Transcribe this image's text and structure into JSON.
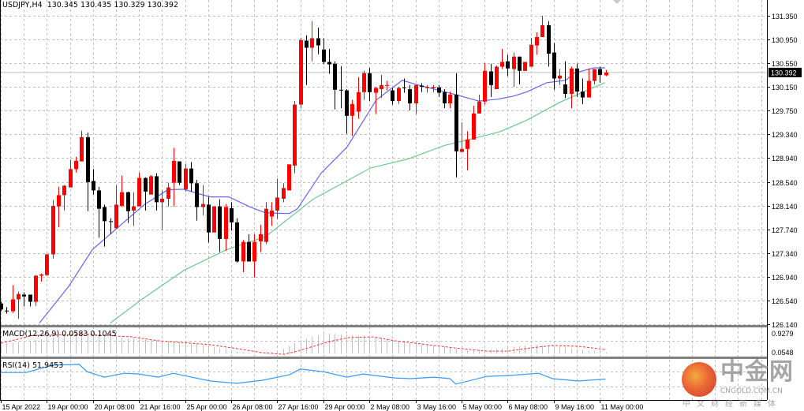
{
  "header": {
    "symbol": "USDJPY,H4",
    "open": "130.345",
    "high": "130.435",
    "low": "130.329",
    "close": "130.392"
  },
  "colors": {
    "bull": "#ff0000",
    "bear": "#000000",
    "ma_fast": "#6464ff",
    "ma_slow": "#6cc88c",
    "macd_hist": "#c0c0c0",
    "macd_signal": "#ff3030",
    "rsi": "#3399ff",
    "grid": "#c0c0c0"
  },
  "chart_data": {
    "type": "candlestick",
    "title": "USDJPY,H4",
    "ylim": [
      126.14,
      131.35
    ],
    "price_labels": [
      "131.350",
      "130.950",
      "130.550",
      "130.150",
      "129.750",
      "129.340",
      "128.940",
      "128.540",
      "128.140",
      "127.740",
      "127.340",
      "126.940",
      "126.540",
      "126.140"
    ],
    "current_price": "130.392",
    "time_labels": [
      {
        "i": 0,
        "t": "15 Apr 2022"
      },
      {
        "i": 8,
        "t": "19 Apr 00:00"
      },
      {
        "i": 16,
        "t": "20 Apr 08:00"
      },
      {
        "i": 24,
        "t": "21 Apr 16:00"
      },
      {
        "i": 32,
        "t": "25 Apr 00:00"
      },
      {
        "i": 40,
        "t": "26 Apr 08:00"
      },
      {
        "i": 48,
        "t": "27 Apr 16:00"
      },
      {
        "i": 56,
        "t": "29 Apr 00:00"
      },
      {
        "i": 64,
        "t": "2 May 08:00"
      },
      {
        "i": 72,
        "t": "3 May 16:00"
      },
      {
        "i": 80,
        "t": "5 May 00:00"
      },
      {
        "i": 88,
        "t": "6 May 08:00"
      },
      {
        "i": 96,
        "t": "9 May 16:00"
      },
      {
        "i": 104,
        "t": "11 May 00:00"
      }
    ],
    "ohlc": [
      [
        126.49,
        126.52,
        126.36,
        126.39
      ],
      [
        126.37,
        126.43,
        126.32,
        126.36
      ],
      [
        126.36,
        126.8,
        126.33,
        126.56
      ],
      [
        126.56,
        126.69,
        126.23,
        126.65
      ],
      [
        126.64,
        126.68,
        126.44,
        126.61
      ],
      [
        126.64,
        126.64,
        126.44,
        126.52
      ],
      [
        126.52,
        126.97,
        126.45,
        126.96
      ],
      [
        126.96,
        127.0,
        126.86,
        126.98
      ],
      [
        126.97,
        127.33,
        126.96,
        127.32
      ],
      [
        127.32,
        128.24,
        127.25,
        128.14
      ],
      [
        128.13,
        128.46,
        127.78,
        128.32
      ],
      [
        128.32,
        128.49,
        128.06,
        128.48
      ],
      [
        128.45,
        128.92,
        128.45,
        128.76
      ],
      [
        128.76,
        128.97,
        128.7,
        128.9
      ],
      [
        128.89,
        129.41,
        128.89,
        129.3
      ],
      [
        129.3,
        129.38,
        128.05,
        128.54
      ],
      [
        128.56,
        128.76,
        128.33,
        128.4
      ],
      [
        128.4,
        128.46,
        127.6,
        128.09
      ],
      [
        128.12,
        128.16,
        127.45,
        127.88
      ],
      [
        127.88,
        127.93,
        127.66,
        127.87
      ],
      [
        127.76,
        128.49,
        127.76,
        128.16
      ],
      [
        128.14,
        128.65,
        128.12,
        128.37
      ],
      [
        128.37,
        128.38,
        127.85,
        128.05
      ],
      [
        128.06,
        128.37,
        127.8,
        128.13
      ],
      [
        128.13,
        128.7,
        128.13,
        128.61
      ],
      [
        128.61,
        128.62,
        128.06,
        128.38
      ],
      [
        128.33,
        128.66,
        128.33,
        128.64
      ],
      [
        128.64,
        128.69,
        128.06,
        128.2
      ],
      [
        128.2,
        128.4,
        127.73,
        128.26
      ],
      [
        128.26,
        128.53,
        128.13,
        128.45
      ],
      [
        128.53,
        129.12,
        128.13,
        128.9
      ],
      [
        128.89,
        128.89,
        128.49,
        128.53
      ],
      [
        128.42,
        128.85,
        128.38,
        128.77
      ],
      [
        128.77,
        128.88,
        128.38,
        128.52
      ],
      [
        128.52,
        128.58,
        127.89,
        128.12
      ],
      [
        128.12,
        128.49,
        127.98,
        128.17
      ],
      [
        128.16,
        128.29,
        127.52,
        127.69
      ],
      [
        127.69,
        128.13,
        127.69,
        128.13
      ],
      [
        128.13,
        128.25,
        127.36,
        127.58
      ],
      [
        127.58,
        128.17,
        127.38,
        128.12
      ],
      [
        128.1,
        128.2,
        127.72,
        127.86
      ],
      [
        127.86,
        127.93,
        127.18,
        127.2
      ],
      [
        127.2,
        127.56,
        127.02,
        127.53
      ],
      [
        127.53,
        127.66,
        127.2,
        127.2
      ],
      [
        127.2,
        127.66,
        126.93,
        127.53
      ],
      [
        127.54,
        127.82,
        127.36,
        127.66
      ],
      [
        127.53,
        128.2,
        127.49,
        128.09
      ],
      [
        127.96,
        128.2,
        127.8,
        128.06
      ],
      [
        128.06,
        128.6,
        127.92,
        128.28
      ],
      [
        128.26,
        128.52,
        128.2,
        128.44
      ],
      [
        128.4,
        128.84,
        128.4,
        128.84
      ],
      [
        128.82,
        129.91,
        128.69,
        129.85
      ],
      [
        129.85,
        130.98,
        129.79,
        130.94
      ],
      [
        130.93,
        131.02,
        130.18,
        130.81
      ],
      [
        130.81,
        131.26,
        130.58,
        130.97
      ],
      [
        130.97,
        131.15,
        130.7,
        130.85
      ],
      [
        130.78,
        130.97,
        130.53,
        130.57
      ],
      [
        130.57,
        130.79,
        130.37,
        130.53
      ],
      [
        130.54,
        130.58,
        129.77,
        130.1
      ],
      [
        130.1,
        130.5,
        129.79,
        130.09
      ],
      [
        130.09,
        130.11,
        129.36,
        129.66
      ],
      [
        129.66,
        129.93,
        129.32,
        129.86
      ],
      [
        129.73,
        130.31,
        129.61,
        130.06
      ],
      [
        130.06,
        130.42,
        129.93,
        130.38
      ],
      [
        130.38,
        130.47,
        129.91,
        130.06
      ],
      [
        130.05,
        130.15,
        129.69,
        130.13
      ],
      [
        130.11,
        130.35,
        129.96,
        130.18
      ],
      [
        130.17,
        130.25,
        130.09,
        130.18
      ],
      [
        130.09,
        130.13,
        129.85,
        129.91
      ],
      [
        129.91,
        130.15,
        129.86,
        130.13
      ],
      [
        130.14,
        130.29,
        130.05,
        130.13
      ],
      [
        130.11,
        130.18,
        129.75,
        129.87
      ],
      [
        129.87,
        130.18,
        129.69,
        130.18
      ],
      [
        130.17,
        130.21,
        130.06,
        130.15
      ],
      [
        130.13,
        130.18,
        130.05,
        130.15
      ],
      [
        130.13,
        130.18,
        130.06,
        130.15
      ],
      [
        130.14,
        130.18,
        129.98,
        130.05
      ],
      [
        130.06,
        130.11,
        129.79,
        129.87
      ],
      [
        129.87,
        130.07,
        129.79,
        130.02
      ],
      [
        130.02,
        130.38,
        128.62,
        129.06
      ],
      [
        129.05,
        129.55,
        129.05,
        129.1
      ],
      [
        129.1,
        129.4,
        128.74,
        129.26
      ],
      [
        129.26,
        129.83,
        129.26,
        129.7
      ],
      [
        129.7,
        130.02,
        129.7,
        129.9
      ],
      [
        129.9,
        130.55,
        129.85,
        130.42
      ],
      [
        130.41,
        130.54,
        129.98,
        130.18
      ],
      [
        130.11,
        130.51,
        130.11,
        130.49
      ],
      [
        130.49,
        130.79,
        130.45,
        130.57
      ],
      [
        130.58,
        130.69,
        130.33,
        130.46
      ],
      [
        130.45,
        130.73,
        130.15,
        130.66
      ],
      [
        130.66,
        130.66,
        130.19,
        130.42
      ],
      [
        130.42,
        130.57,
        130.42,
        130.57
      ],
      [
        130.49,
        130.97,
        130.49,
        130.86
      ],
      [
        130.85,
        131.07,
        130.69,
        130.99
      ],
      [
        130.99,
        131.35,
        130.99,
        131.19
      ],
      [
        131.19,
        131.26,
        130.49,
        130.71
      ],
      [
        130.73,
        130.89,
        130.1,
        130.29
      ],
      [
        130.29,
        130.45,
        130.18,
        130.34
      ],
      [
        130.19,
        130.58,
        129.96,
        130.03
      ],
      [
        130.03,
        130.49,
        129.79,
        130.46
      ],
      [
        130.46,
        130.54,
        129.98,
        130.07
      ],
      [
        130.07,
        130.29,
        129.86,
        129.97
      ],
      [
        129.97,
        130.46,
        129.97,
        130.25
      ],
      [
        130.25,
        130.45,
        130.19,
        130.45
      ],
      [
        130.45,
        130.49,
        130.22,
        130.35
      ],
      [
        130.345,
        130.435,
        130.329,
        130.392
      ]
    ],
    "ma_fast": [
      [
        6.7,
        126.16
      ],
      [
        11.8,
        126.78
      ],
      [
        15.9,
        127.4
      ],
      [
        20.4,
        127.78
      ],
      [
        24.9,
        128.16
      ],
      [
        29.0,
        128.41
      ],
      [
        31.8,
        128.42
      ],
      [
        34.1,
        128.35
      ],
      [
        36.4,
        128.29
      ],
      [
        39.6,
        128.29
      ],
      [
        43.3,
        128.12
      ],
      [
        46.0,
        128.02
      ],
      [
        50.1,
        128.01
      ],
      [
        51.5,
        128.09
      ],
      [
        55.6,
        128.69
      ],
      [
        60.1,
        129.13
      ],
      [
        65.2,
        129.93
      ],
      [
        69.7,
        130.26
      ],
      [
        72.5,
        130.18
      ],
      [
        78.9,
        130.02
      ],
      [
        83.0,
        129.91
      ],
      [
        86.2,
        129.94
      ],
      [
        88.9,
        129.99
      ],
      [
        91.2,
        130.06
      ],
      [
        94.8,
        130.22
      ],
      [
        98.1,
        130.26
      ],
      [
        99.5,
        130.38
      ],
      [
        103.0,
        130.47
      ],
      [
        104.9,
        130.47
      ]
    ],
    "ma_slow": [
      [
        19.0,
        126.16
      ],
      [
        24.5,
        126.56
      ],
      [
        31.8,
        127.05
      ],
      [
        39.2,
        127.4
      ],
      [
        46.0,
        127.62
      ],
      [
        54.2,
        128.25
      ],
      [
        64.2,
        128.78
      ],
      [
        70.7,
        128.93
      ],
      [
        77.0,
        129.16
      ],
      [
        83.4,
        129.31
      ],
      [
        86.6,
        129.39
      ],
      [
        91.2,
        129.58
      ],
      [
        97.1,
        129.89
      ],
      [
        102.2,
        130.11
      ],
      [
        104.9,
        130.22
      ]
    ]
  },
  "macd": {
    "label": "MACD(12,26,9) 0.0583 0.1045",
    "axis_labels": [
      "0.9279",
      "0.0548"
    ],
    "histogram": [
      [
        0,
        0.45
      ],
      [
        6,
        0.6
      ],
      [
        14,
        0.95
      ],
      [
        16,
        0.85
      ],
      [
        22,
        0.7
      ],
      [
        30,
        0.55
      ],
      [
        36,
        0.35
      ],
      [
        41,
        0.1
      ],
      [
        44,
        0.02
      ],
      [
        48,
        0.1
      ],
      [
        52,
        0.6
      ],
      [
        56,
        0.9
      ],
      [
        60,
        0.85
      ],
      [
        66,
        0.7
      ],
      [
        72,
        0.45
      ],
      [
        78,
        0.3
      ],
      [
        80,
        0.15
      ],
      [
        86,
        0.2
      ],
      [
        92,
        0.4
      ],
      [
        96,
        0.35
      ],
      [
        100,
        0.2
      ],
      [
        105,
        0.06
      ]
    ],
    "signal": [
      [
        0,
        0.47
      ],
      [
        5.8,
        0.82
      ],
      [
        15,
        0.86
      ],
      [
        22.7,
        0.75
      ],
      [
        27.3,
        0.58
      ],
      [
        36.4,
        0.4
      ],
      [
        41,
        0.23
      ],
      [
        45.5,
        0.05
      ],
      [
        49.2,
        -0.02
      ],
      [
        51.5,
        0.12
      ],
      [
        57,
        0.54
      ],
      [
        60.5,
        0.72
      ],
      [
        64.7,
        0.75
      ],
      [
        68.4,
        0.58
      ],
      [
        72.9,
        0.44
      ],
      [
        78.9,
        0.26
      ],
      [
        84.4,
        0.12
      ],
      [
        88,
        0.12
      ],
      [
        92,
        0.26
      ],
      [
        95.8,
        0.37
      ],
      [
        100.3,
        0.33
      ],
      [
        105,
        0.19
      ]
    ]
  },
  "rsi": {
    "label": "RSI(14) 51.9453",
    "values": [
      [
        0,
        69
      ],
      [
        4.4,
        69
      ],
      [
        9,
        88
      ],
      [
        13.6,
        90
      ],
      [
        15,
        71
      ],
      [
        18,
        57
      ],
      [
        21.4,
        67
      ],
      [
        24,
        65
      ],
      [
        27.3,
        57
      ],
      [
        30,
        67
      ],
      [
        31.8,
        61
      ],
      [
        36.4,
        47
      ],
      [
        41,
        41
      ],
      [
        45.5,
        49
      ],
      [
        50.1,
        63
      ],
      [
        52,
        78
      ],
      [
        56,
        71
      ],
      [
        60.1,
        57
      ],
      [
        62.9,
        65
      ],
      [
        68.4,
        55
      ],
      [
        71.1,
        53
      ],
      [
        75.2,
        57
      ],
      [
        78,
        53
      ],
      [
        79,
        39
      ],
      [
        84.4,
        59
      ],
      [
        88,
        61
      ],
      [
        93.4,
        67
      ],
      [
        95.8,
        53
      ],
      [
        100.3,
        47
      ],
      [
        105,
        52
      ]
    ]
  },
  "watermark": {
    "brand": "中金网",
    "domain": "CNGOLD.COM.CN",
    "tagline": "中文财经新媒体"
  }
}
